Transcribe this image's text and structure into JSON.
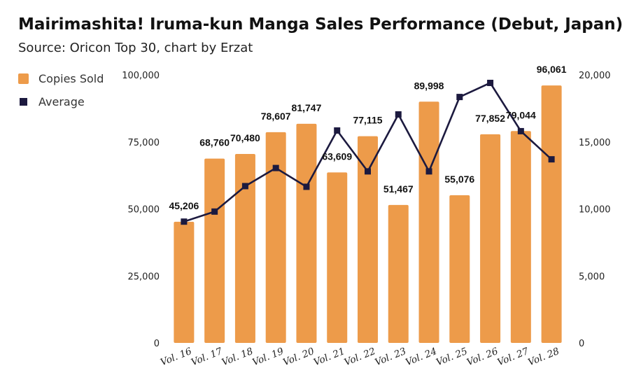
{
  "title": "Mairimashita! Iruma-kun Manga Sales Performance (Debut, Japan)",
  "subtitle": "Source: Oricon Top 30, chart by Erzat",
  "legend": {
    "bars_label": "Copies Sold",
    "line_label": "Average"
  },
  "colors": {
    "bar": "#ED9B4A",
    "line": "#1C1A3F"
  },
  "chart_data": {
    "type": "bar",
    "categories": [
      "Vol. 16",
      "Vol. 17",
      "Vol. 18",
      "Vol. 19",
      "Vol. 20",
      "Vol. 21",
      "Vol. 22",
      "Vol. 23",
      "Vol. 24",
      "Vol. 25",
      "Vol. 26",
      "Vol. 27",
      "Vol. 28"
    ],
    "series": [
      {
        "name": "Copies Sold",
        "type": "bar",
        "axis": "left",
        "values": [
          45206,
          68760,
          70480,
          78607,
          81747,
          63609,
          77115,
          51467,
          89998,
          55076,
          77852,
          79044,
          96061
        ],
        "labels": [
          "45,206",
          "68,760",
          "70,480",
          "78,607",
          "81,747",
          "63,609",
          "77,115",
          "51,467",
          "89,998",
          "55,076",
          "77,852",
          "79,044",
          "96,061"
        ]
      },
      {
        "name": "Average",
        "type": "line",
        "axis": "right",
        "values": [
          9050,
          9800,
          11700,
          13050,
          11650,
          15850,
          12800,
          17050,
          12800,
          18350,
          19400,
          15800,
          13700
        ]
      }
    ],
    "left_axis": {
      "min": 0,
      "max": 100000,
      "ticks": [
        0,
        25000,
        50000,
        75000,
        100000
      ],
      "tick_labels": [
        "0",
        "25,000",
        "50,000",
        "75,000",
        "100,000"
      ]
    },
    "right_axis": {
      "min": 0,
      "max": 20000,
      "ticks": [
        0,
        5000,
        10000,
        15000,
        20000
      ],
      "tick_labels": [
        "0",
        "5,000",
        "10,000",
        "15,000",
        "20,000"
      ]
    },
    "legend_position": "top-left",
    "grid": false
  }
}
